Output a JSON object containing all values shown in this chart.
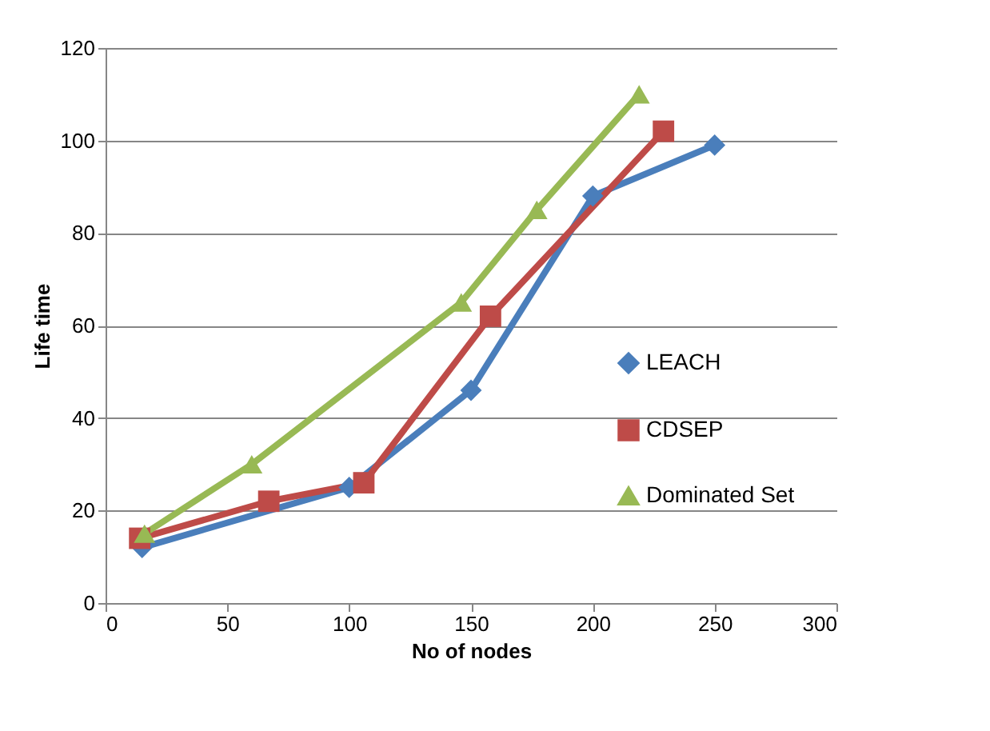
{
  "chart_data": {
    "type": "line",
    "xlabel": "No of nodes",
    "ylabel": "Life time",
    "xlim": [
      0,
      300
    ],
    "xticks": [
      0,
      50,
      100,
      150,
      200,
      250,
      300
    ],
    "ylim": [
      0,
      120
    ],
    "yticks": [
      0,
      20,
      40,
      60,
      80,
      100,
      120
    ],
    "grid": "y",
    "legend": "right",
    "series": [
      {
        "name": "LEACH",
        "color": "#4a7ebb",
        "marker": "diamond",
        "x": [
          15,
          100,
          150,
          200,
          250
        ],
        "values": [
          12,
          25,
          46,
          88,
          99
        ]
      },
      {
        "name": "CDSEP",
        "color": "#be4b48",
        "marker": "square",
        "x": [
          14,
          67,
          106,
          158,
          229
        ],
        "values": [
          14,
          22,
          26,
          62,
          102
        ]
      },
      {
        "name": "Dominated Set",
        "color": "#98b954",
        "marker": "triangle",
        "x": [
          16,
          60,
          146,
          177,
          219
        ],
        "values": [
          15,
          30,
          65,
          85,
          110
        ]
      }
    ]
  }
}
